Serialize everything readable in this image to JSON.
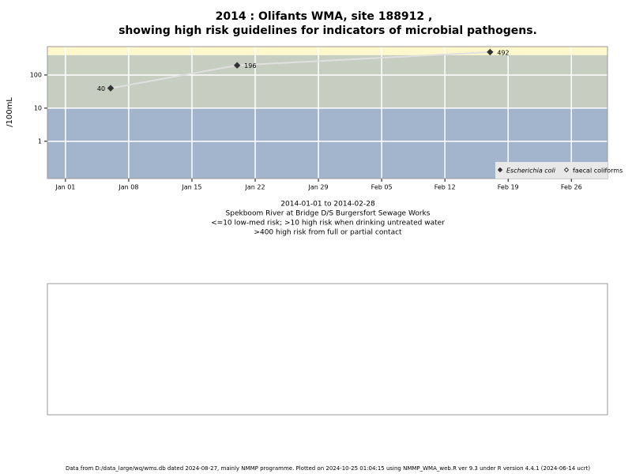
{
  "chart_data": {
    "type": "line",
    "title": "2014 : Olifants WMA, site 188912 ,",
    "subtitle": "showing high risk guidelines for indicators of microbial pathogens.",
    "ylabel": "/100mL",
    "log_y": true,
    "grid": true,
    "legend_position": "bottom-right",
    "x": [
      "2014-01-06",
      "2014-01-20",
      "2014-02-17"
    ],
    "xlim": [
      "2013-12-30",
      "2014-03-02"
    ],
    "xticks": [
      {
        "value": "2014-01-01",
        "label": "Jan 01"
      },
      {
        "value": "2014-01-08",
        "label": "Jan 08"
      },
      {
        "value": "2014-01-15",
        "label": "Jan 15"
      },
      {
        "value": "2014-01-22",
        "label": "Jan 22"
      },
      {
        "value": "2014-01-29",
        "label": "Jan 29"
      },
      {
        "value": "2014-02-05",
        "label": "Feb 05"
      },
      {
        "value": "2014-02-12",
        "label": "Feb 12"
      },
      {
        "value": "2014-02-19",
        "label": "Feb 19"
      },
      {
        "value": "2014-02-26",
        "label": "Feb 26"
      }
    ],
    "ylim": [
      0.075,
      720
    ],
    "yticks": [
      1,
      10,
      100
    ],
    "thresholds": [
      10,
      400
    ],
    "band_colors": [
      "#a3b4cd",
      "#c5cec1",
      "#fff8cc"
    ],
    "line_color": "#e0e0e0",
    "series": [
      {
        "name": "Escherichia coli",
        "color": "#333333",
        "values": [
          40,
          196,
          492
        ]
      },
      {
        "name": "faecal coliforms",
        "color": "#ffffff",
        "values": [
          null,
          null,
          null
        ]
      }
    ],
    "captions": [
      "2014-01-01 to 2014-02-28",
      "Spekboom River at Bridge D/S Burgersfort Sewage Works",
      "<=10 low-med risk; >10 high risk when drinking untreated water",
      ">400 high risk from full or partial contact"
    ],
    "footer": "Data from D:/data_large/wq/wms.db dated 2024-08-27, mainly NMMP programme. Plotted on 2024-10-25 01:04:15 using NMMP_WMA_web.R ver 9.3 under R version 4.4.1 (2024-06-14 ucrt)"
  }
}
